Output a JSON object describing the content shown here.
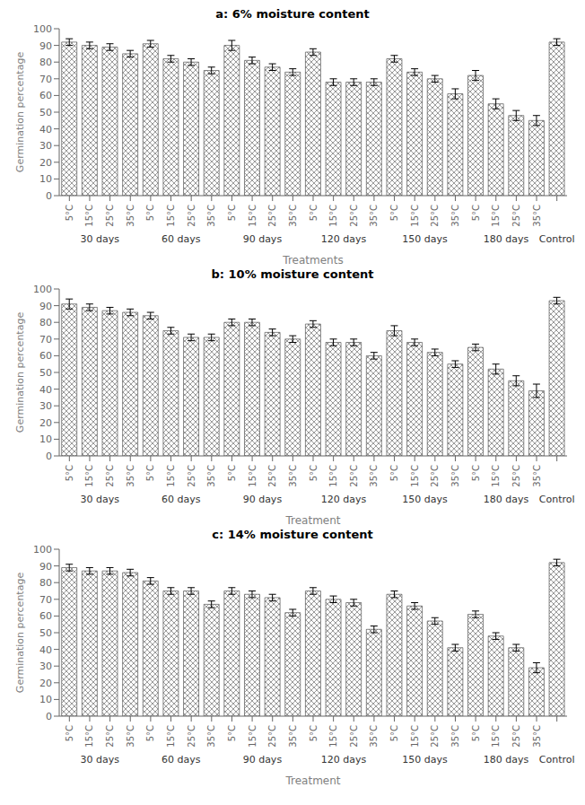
{
  "chart_data": [
    {
      "type": "bar",
      "title": "a: 6% moisture content",
      "xlabel": "Treatments",
      "ylabel": "Germination percentage",
      "color": "#555555",
      "grid": false,
      "ylim": [
        0,
        100
      ],
      "yticks": [
        0,
        10,
        20,
        30,
        40,
        50,
        60,
        70,
        80,
        90,
        100
      ],
      "groups": [
        {
          "name": "30 days",
          "categories": [
            "5°C",
            "15°C",
            "25°C",
            "35°C"
          ],
          "values": [
            92,
            90,
            89,
            85
          ],
          "errors": [
            2,
            2,
            2,
            2
          ]
        },
        {
          "name": "60 days",
          "categories": [
            "5°C",
            "15°C",
            "25°C",
            "35°C"
          ],
          "values": [
            91,
            82,
            80,
            75
          ],
          "errors": [
            2,
            2,
            2,
            2
          ]
        },
        {
          "name": "90 days",
          "categories": [
            "5°C",
            "15°C",
            "25°C",
            "35°C"
          ],
          "values": [
            90,
            81,
            77,
            74
          ],
          "errors": [
            3,
            2,
            2,
            2
          ]
        },
        {
          "name": "120 days",
          "categories": [
            "5°C",
            "15°C",
            "25°C",
            "35°C"
          ],
          "values": [
            86,
            68,
            68,
            68
          ],
          "errors": [
            2,
            2,
            2,
            2
          ]
        },
        {
          "name": "150 days",
          "categories": [
            "5°C",
            "15°C",
            "25°C",
            "35°C"
          ],
          "values": [
            82,
            74,
            70,
            61
          ],
          "errors": [
            2,
            2,
            2,
            3
          ]
        },
        {
          "name": "180 days",
          "categories": [
            "5°C",
            "15°C",
            "25°C",
            "35°C"
          ],
          "values": [
            72,
            55,
            48,
            45
          ],
          "errors": [
            3,
            3,
            3,
            3
          ]
        },
        {
          "name": "Control",
          "categories": [
            null
          ],
          "values": [
            92
          ],
          "errors": [
            2
          ]
        }
      ]
    },
    {
      "type": "bar",
      "title": "b: 10% moisture content",
      "xlabel": "Treatment",
      "ylabel": "Germination percentage",
      "color": "#555555",
      "grid": false,
      "ylim": [
        0,
        100
      ],
      "yticks": [
        0,
        10,
        20,
        30,
        40,
        50,
        60,
        70,
        80,
        90,
        100
      ],
      "groups": [
        {
          "name": "30 days",
          "categories": [
            "5°C",
            "15°C",
            "25°C",
            "35°C"
          ],
          "values": [
            91,
            89,
            87,
            86
          ],
          "errors": [
            3,
            2,
            2,
            2
          ]
        },
        {
          "name": "60 days",
          "categories": [
            "5°C",
            "15°C",
            "25°C",
            "35°C"
          ],
          "values": [
            84,
            75,
            71,
            71
          ],
          "errors": [
            2,
            2,
            2,
            2
          ]
        },
        {
          "name": "90 days",
          "categories": [
            "5°C",
            "15°C",
            "25°C",
            "35°C"
          ],
          "values": [
            80,
            80,
            74,
            70
          ],
          "errors": [
            2,
            2,
            2,
            2
          ]
        },
        {
          "name": "120 days",
          "categories": [
            "5°C",
            "15°C",
            "25°C",
            "35°C"
          ],
          "values": [
            79,
            68,
            68,
            60
          ],
          "errors": [
            2,
            2,
            2,
            2
          ]
        },
        {
          "name": "150 days",
          "categories": [
            "5°C",
            "15°C",
            "25°C",
            "35°C"
          ],
          "values": [
            75,
            68,
            62,
            55
          ],
          "errors": [
            3,
            2,
            2,
            2
          ]
        },
        {
          "name": "180 days",
          "categories": [
            "5°C",
            "15°C",
            "25°C",
            "35°C"
          ],
          "values": [
            65,
            52,
            45,
            39
          ],
          "errors": [
            2,
            3,
            3,
            4
          ]
        },
        {
          "name": "Control",
          "categories": [
            null
          ],
          "values": [
            93
          ],
          "errors": [
            2
          ]
        }
      ]
    },
    {
      "type": "bar",
      "title": "c: 14% moisture content",
      "xlabel": "Treatment",
      "ylabel": "Germination percentage",
      "color": "#555555",
      "grid": false,
      "ylim": [
        0,
        100
      ],
      "yticks": [
        0,
        10,
        20,
        30,
        40,
        50,
        60,
        70,
        80,
        90,
        100
      ],
      "groups": [
        {
          "name": "30 days",
          "categories": [
            "5°C",
            "15°C",
            "25°C",
            "35°C"
          ],
          "values": [
            89,
            87,
            87,
            86
          ],
          "errors": [
            2,
            2,
            2,
            2
          ]
        },
        {
          "name": "60 days",
          "categories": [
            "5°C",
            "15°C",
            "25°C",
            "35°C"
          ],
          "values": [
            81,
            75,
            75,
            67
          ],
          "errors": [
            2,
            2,
            2,
            2
          ]
        },
        {
          "name": "90 days",
          "categories": [
            "5°C",
            "15°C",
            "25°C",
            "35°C"
          ],
          "values": [
            75,
            73,
            71,
            62
          ],
          "errors": [
            2,
            2,
            2,
            2
          ]
        },
        {
          "name": "120 days",
          "categories": [
            "5°C",
            "15°C",
            "25°C",
            "35°C"
          ],
          "values": [
            75,
            70,
            68,
            52
          ],
          "errors": [
            2,
            2,
            2,
            2
          ]
        },
        {
          "name": "150 days",
          "categories": [
            "5°C",
            "15°C",
            "25°C",
            "35°C"
          ],
          "values": [
            73,
            66,
            57,
            41
          ],
          "errors": [
            2,
            2,
            2,
            2
          ]
        },
        {
          "name": "180 days",
          "categories": [
            "5°C",
            "15°C",
            "25°C",
            "35°C"
          ],
          "values": [
            61,
            48,
            41,
            29
          ],
          "errors": [
            2,
            2,
            2,
            3
          ]
        },
        {
          "name": "Control",
          "categories": [
            null
          ],
          "values": [
            92
          ],
          "errors": [
            2
          ]
        }
      ]
    }
  ]
}
